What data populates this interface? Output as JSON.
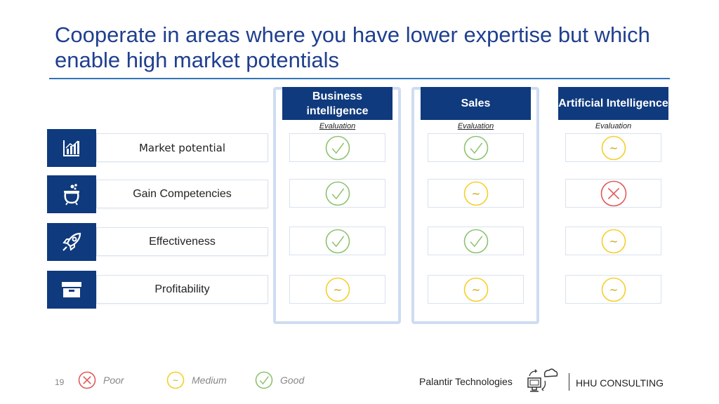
{
  "title": "Cooperate in areas where you have lower expertise but which enable high market potentials",
  "columns": [
    {
      "label": "Business intelligence",
      "eval": "Evaluation"
    },
    {
      "label": "Sales",
      "eval": "Evaluation"
    },
    {
      "label": "Artificial Intelligence",
      "eval": "Evaluation"
    }
  ],
  "rows": [
    {
      "label": "Market potential",
      "icon": "bar-chart-icon",
      "ratings": [
        "good",
        "good",
        "medium"
      ]
    },
    {
      "label": "Gain Competencies",
      "icon": "cauldron-icon",
      "ratings": [
        "good",
        "medium",
        "poor"
      ]
    },
    {
      "label": "Effectiveness",
      "icon": "rocket-icon",
      "ratings": [
        "good",
        "good",
        "medium"
      ]
    },
    {
      "label": "Profitability",
      "icon": "box-icon",
      "ratings": [
        "medium",
        "medium",
        "medium"
      ]
    }
  ],
  "legend": {
    "poor": "Poor",
    "medium": "Medium",
    "good": "Good"
  },
  "rating_colors": {
    "good": "#8dc26f",
    "medium": "#f4cf2a",
    "poor": "#e05a5a"
  },
  "page_number": "19",
  "footer": {
    "company": "Palantir Technologies",
    "brand": "HHU CONSULTING"
  }
}
